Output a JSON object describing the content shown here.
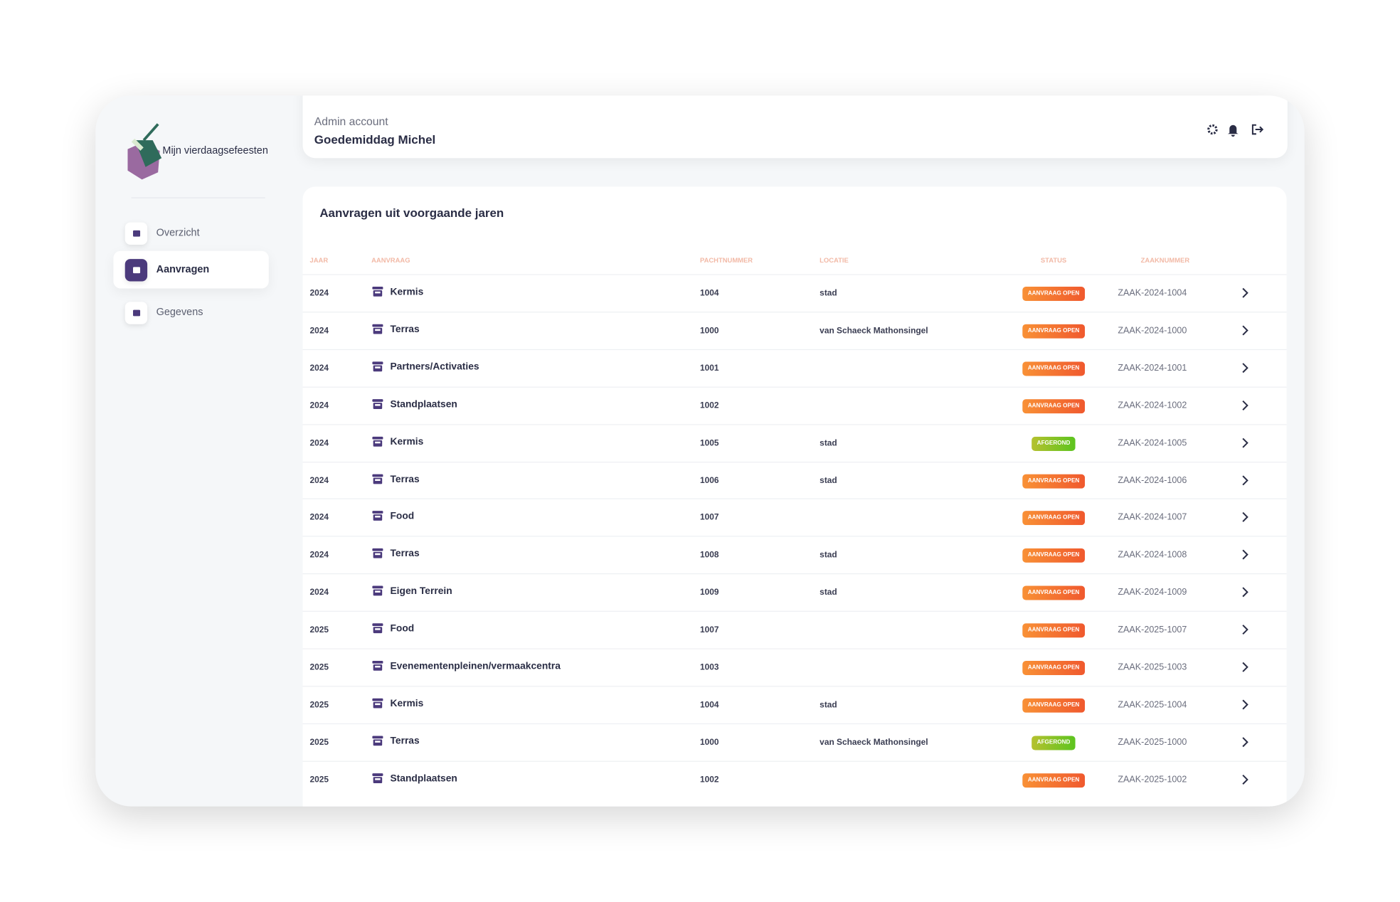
{
  "sidebar": {
    "brand": "Mijn vierdaagsefeesten",
    "nav": [
      {
        "label": "Overzicht",
        "active": false
      },
      {
        "label": "Aanvragen",
        "active": true
      },
      {
        "label": "Gegevens",
        "active": false
      }
    ]
  },
  "header": {
    "subtitle": "Admin account",
    "greeting": "Goedemiddag Michel"
  },
  "table": {
    "title": "Aanvragen uit voorgaande jaren",
    "columns": [
      "JAAR",
      "AANVRAAG",
      "PACHTNUMMER",
      "LOCATIE",
      "STATUS",
      "ZAAKNUMMER"
    ],
    "rows": [
      {
        "jaar": "2024",
        "aanvraag": "Kermis",
        "pachtnummer": "1004",
        "locatie": "stad",
        "status": "AANVRAAG OPEN",
        "status_color": "#f0592e",
        "zaaknummer": "ZAAK-2024-1004"
      },
      {
        "jaar": "2024",
        "aanvraag": "Terras",
        "pachtnummer": "1000",
        "locatie": "van Schaeck Mathonsingel",
        "status": "AANVRAAG OPEN",
        "status_color": "#f0592e",
        "zaaknummer": "ZAAK-2024-1000"
      },
      {
        "jaar": "2024",
        "aanvraag": "Partners/Activaties",
        "pachtnummer": "1001",
        "status": "AANVRAAG OPEN",
        "status_color": "#f0592e",
        "zaaknummer": "ZAAK-2024-1001"
      },
      {
        "jaar": "2024",
        "aanvraag": "Standplaatsen",
        "pachtnummer": "1002",
        "status": "AANVRAAG OPEN",
        "status_color": "#f0592e",
        "zaaknummer": "ZAAK-2024-1002"
      },
      {
        "jaar": "2024",
        "aanvraag": "Kermis",
        "pachtnummer": "1005",
        "locatie": "stad",
        "status": "AFGEROND",
        "status_color": "#5cc41f",
        "zaaknummer": "ZAAK-2024-1005"
      },
      {
        "jaar": "2024",
        "aanvraag": "Terras",
        "pachtnummer": "1006",
        "locatie": "stad",
        "status": "AANVRAAG OPEN",
        "status_color": "#f0592e",
        "zaaknummer": "ZAAK-2024-1006"
      },
      {
        "jaar": "2024",
        "aanvraag": "Food",
        "pachtnummer": "1007",
        "status": "AANVRAAG OPEN",
        "status_color": "#f0592e",
        "zaaknummer": "ZAAK-2024-1007"
      },
      {
        "jaar": "2024",
        "aanvraag": "Terras",
        "pachtnummer": "1008",
        "locatie": "stad",
        "status": "AANVRAAG OPEN",
        "status_color": "#f0592e",
        "zaaknummer": "ZAAK-2024-1008"
      },
      {
        "jaar": "2024",
        "aanvraag": "Eigen Terrein",
        "pachtnummer": "1009",
        "locatie": "stad",
        "status": "AANVRAAG OPEN",
        "status_color": "#f0592e",
        "zaaknummer": "ZAAK-2024-1009"
      },
      {
        "jaar": "2025",
        "aanvraag": "Food",
        "pachtnummer": "1007",
        "status": "AANVRAAG OPEN",
        "status_color": "#f0592e",
        "zaaknummer": "ZAAK-2025-1007"
      },
      {
        "jaar": "2025",
        "aanvraag": "Evenementenpleinen/vermaakcentra",
        "pachtnummer": "1003",
        "status": "AANVRAAG OPEN",
        "status_color": "#f0592e",
        "zaaknummer": "ZAAK-2025-1003"
      },
      {
        "jaar": "2025",
        "aanvraag": "Kermis",
        "pachtnummer": "1004",
        "locatie": "stad",
        "status": "AANVRAAG OPEN",
        "status_color": "#f0592e",
        "zaaknummer": "ZAAK-2025-1004"
      },
      {
        "jaar": "2025",
        "aanvraag": "Terras",
        "pachtnummer": "1000",
        "locatie": "van Schaeck Mathonsingel",
        "status": "AFGEROND",
        "status_color": "#5cc41f",
        "zaaknummer": "ZAAK-2025-1000"
      },
      {
        "jaar": "2025",
        "aanvraag": "Standplaatsen",
        "pachtnummer": "1002",
        "status": "AANVRAAG OPEN",
        "status_color": "#f0592e",
        "zaaknummer": "ZAAK-2025-1002"
      }
    ]
  }
}
